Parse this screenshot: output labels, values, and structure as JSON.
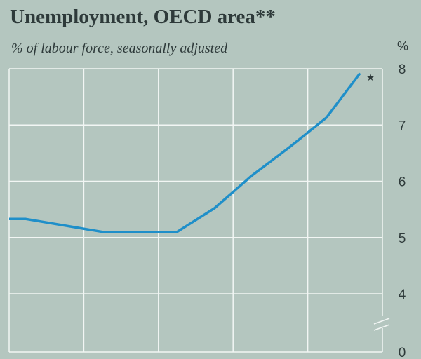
{
  "chart_data": {
    "type": "line",
    "title": "Unemployment, OECD area**",
    "subtitle": "% of labour force, seasonally adjusted",
    "ylabel": "%",
    "ylim": [
      0,
      8
    ],
    "y_axis_break": [
      0,
      4
    ],
    "y_ticks": [
      "8",
      "7",
      "6",
      "5",
      "4",
      "0"
    ],
    "y_tick_values": [
      8,
      7,
      6,
      5,
      4,
      0
    ],
    "x_gridlines": 5,
    "xlim": [
      0,
      10
    ],
    "grid": true,
    "series": [
      {
        "x": [
          0,
          0.45,
          2.5,
          4.5,
          5.5,
          6.5,
          7.5,
          8.5,
          9.4
        ],
        "y": [
          5.33,
          5.33,
          5.1,
          5.1,
          5.52,
          6.1,
          6.6,
          7.13,
          7.92
        ],
        "color": "#1f8fc9"
      }
    ],
    "end_marker": "*",
    "colors": {
      "background": "#b4c6bf",
      "grid": "#f2f6f4",
      "text": "#2e3a3a"
    }
  }
}
